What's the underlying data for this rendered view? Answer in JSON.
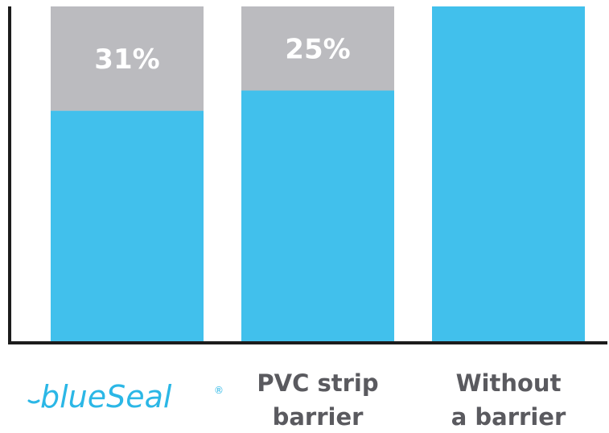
{
  "chart_data": {
    "type": "bar",
    "stacked": true,
    "categories": [
      "blueSeal",
      "PVC strip barrier",
      "Without a barrier"
    ],
    "category_lines": [
      [
        "blueSeal"
      ],
      [
        "PVC strip",
        "barrier"
      ],
      [
        "Without",
        "a barrier"
      ]
    ],
    "series": [
      {
        "values": [
          69,
          75,
          100
        ]
      },
      {
        "values": [
          31,
          25,
          0
        ]
      }
    ],
    "data_labels": [
      "31%",
      "25%",
      ""
    ],
    "logo": {
      "text": "blueSeal",
      "mark": "®"
    },
    "ylim": [
      0,
      100
    ],
    "grid": false,
    "legend": "none",
    "colors": {
      "primary": "#41c0ec",
      "secondary": "#bbbbbf",
      "axis": "#1c1c1c",
      "label": "#5a5a5f",
      "logo": "#2bb7e6"
    }
  }
}
